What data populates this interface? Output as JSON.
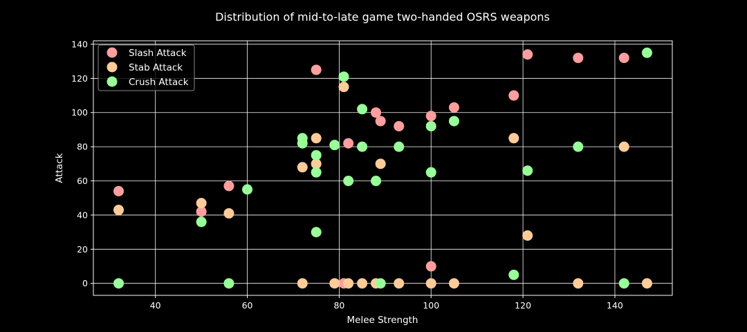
{
  "chart_data": {
    "type": "scatter",
    "title": "Distribution of mid-to-late game two-handed OSRS weapons",
    "xlabel": "Melee Strength",
    "ylabel": "Attack",
    "xlim": [
      26.5,
      152.5
    ],
    "ylim": [
      -7,
      142
    ],
    "xticks": [
      40,
      60,
      80,
      100,
      120,
      140
    ],
    "yticks": [
      0,
      20,
      40,
      60,
      80,
      100,
      120,
      140
    ],
    "grid": true,
    "legend_position": "top-left",
    "series": [
      {
        "name": "Slash Attack",
        "color": "#ff9e9e",
        "points": [
          [
            32,
            54
          ],
          [
            50,
            42
          ],
          [
            56,
            57
          ],
          [
            75,
            125
          ],
          [
            81,
            0
          ],
          [
            82,
            82
          ],
          [
            88,
            100
          ],
          [
            89,
            95
          ],
          [
            93,
            92
          ],
          [
            100,
            98
          ],
          [
            100,
            10
          ],
          [
            105,
            103
          ],
          [
            118,
            110
          ],
          [
            121,
            134
          ],
          [
            132,
            132
          ],
          [
            142,
            132
          ]
        ]
      },
      {
        "name": "Stab Attack",
        "color": "#ffcc99",
        "points": [
          [
            32,
            43
          ],
          [
            50,
            47
          ],
          [
            56,
            41
          ],
          [
            72,
            68
          ],
          [
            72,
            0
          ],
          [
            75,
            85
          ],
          [
            75,
            70
          ],
          [
            79,
            0
          ],
          [
            81,
            115
          ],
          [
            82,
            0
          ],
          [
            85,
            0
          ],
          [
            88,
            0
          ],
          [
            89,
            70
          ],
          [
            93,
            0
          ],
          [
            100,
            0
          ],
          [
            105,
            0
          ],
          [
            118,
            85
          ],
          [
            121,
            28
          ],
          [
            132,
            0
          ],
          [
            142,
            80
          ],
          [
            147,
            0
          ]
        ]
      },
      {
        "name": "Crush Attack",
        "color": "#99ff99",
        "points": [
          [
            32,
            0
          ],
          [
            50,
            36
          ],
          [
            56,
            0
          ],
          [
            60,
            55
          ],
          [
            72,
            85
          ],
          [
            72,
            82
          ],
          [
            75,
            75
          ],
          [
            75,
            65
          ],
          [
            75,
            30
          ],
          [
            79,
            81
          ],
          [
            81,
            121
          ],
          [
            82,
            60
          ],
          [
            85,
            102
          ],
          [
            85,
            80
          ],
          [
            88,
            60
          ],
          [
            89,
            0
          ],
          [
            93,
            80
          ],
          [
            100,
            92
          ],
          [
            100,
            65
          ],
          [
            105,
            95
          ],
          [
            118,
            5
          ],
          [
            121,
            66
          ],
          [
            132,
            80
          ],
          [
            142,
            0
          ],
          [
            147,
            135
          ]
        ]
      }
    ]
  }
}
